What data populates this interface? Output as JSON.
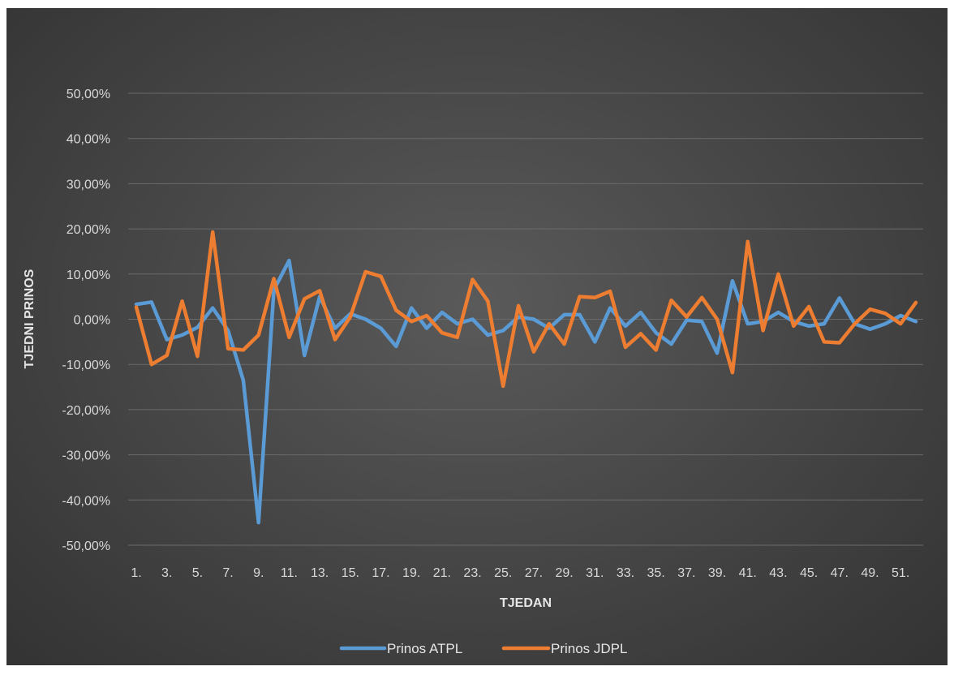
{
  "chart_data": {
    "type": "line",
    "xlabel": "TJEDAN",
    "ylabel": "TJEDNI PRINOS",
    "ylim": [
      -0.5,
      0.5
    ],
    "y_ticks": [
      0.5,
      0.4,
      0.3,
      0.2,
      0.1,
      0.0,
      -0.1,
      -0.2,
      -0.3,
      -0.4,
      -0.5
    ],
    "y_tick_labels": [
      "50,00%",
      "40,00%",
      "30,00%",
      "20,00%",
      "10,00%",
      "0,00%",
      "-10,00%",
      "-20,00%",
      "-30,00%",
      "-40,00%",
      "-50,00%"
    ],
    "x_tick_labels": [
      "1.",
      "3.",
      "5.",
      "7.",
      "9.",
      "11.",
      "13.",
      "15.",
      "17.",
      "19.",
      "21.",
      "23.",
      "25.",
      "27.",
      "29.",
      "31.",
      "33.",
      "35.",
      "37.",
      "39.",
      "41.",
      "43.",
      "45.",
      "47.",
      "49.",
      "51."
    ],
    "x": [
      1,
      2,
      3,
      4,
      5,
      6,
      7,
      8,
      9,
      10,
      11,
      12,
      13,
      14,
      15,
      16,
      17,
      18,
      19,
      20,
      21,
      22,
      23,
      24,
      25,
      26,
      27,
      28,
      29,
      30,
      31,
      32,
      33,
      34,
      35,
      36,
      37,
      38,
      39,
      40,
      41,
      42,
      43,
      44,
      45,
      46,
      47,
      48,
      49,
      50,
      51,
      52
    ],
    "grid": true,
    "legend_position": "bottom",
    "series": [
      {
        "name": "Prinos ATPL",
        "color": "#5b9bd5",
        "values": [
          0.033,
          0.038,
          -0.045,
          -0.035,
          -0.018,
          0.025,
          -0.025,
          -0.135,
          -0.45,
          0.065,
          0.13,
          -0.08,
          0.05,
          -0.02,
          0.012,
          0.0,
          -0.02,
          -0.06,
          0.025,
          -0.02,
          0.015,
          -0.01,
          0.0,
          -0.035,
          -0.025,
          0.005,
          0.0,
          -0.02,
          0.01,
          0.01,
          -0.05,
          0.025,
          -0.015,
          0.015,
          -0.03,
          -0.055,
          -0.002,
          -0.005,
          -0.075,
          0.085,
          -0.01,
          -0.005,
          0.015,
          -0.005,
          -0.015,
          -0.01,
          0.047,
          -0.01,
          -0.022,
          -0.01,
          0.008,
          -0.005
        ]
      },
      {
        "name": "Prinos JDPL",
        "color": "#ed7d31",
        "values": [
          0.027,
          -0.1,
          -0.08,
          0.04,
          -0.082,
          0.193,
          -0.065,
          -0.068,
          -0.035,
          0.09,
          -0.04,
          0.045,
          0.063,
          -0.045,
          0.005,
          0.105,
          0.095,
          0.02,
          -0.005,
          0.008,
          -0.03,
          -0.04,
          0.088,
          0.04,
          -0.148,
          0.03,
          -0.072,
          -0.01,
          -0.055,
          0.05,
          0.048,
          0.062,
          -0.062,
          -0.032,
          -0.068,
          0.042,
          0.005,
          0.048,
          0.0,
          -0.118,
          0.172,
          -0.025,
          0.1,
          -0.015,
          0.028,
          -0.05,
          -0.052,
          -0.01,
          0.022,
          0.013,
          -0.01,
          0.037
        ]
      }
    ]
  }
}
